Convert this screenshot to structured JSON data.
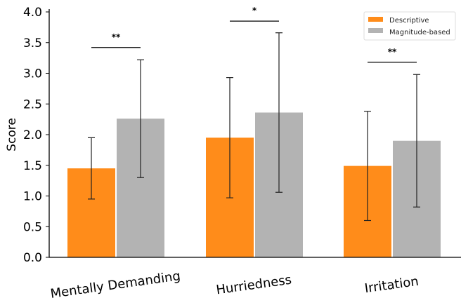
{
  "chart_data": {
    "type": "bar",
    "categories": [
      "Mentally Demanding",
      "Hurriedness",
      "Irritation"
    ],
    "ylabel": "Score",
    "xlabel": "",
    "ylim": [
      0,
      4.0
    ],
    "yticks": [
      "0.0",
      "0.5",
      "1.0",
      "1.5",
      "2.0",
      "2.5",
      "3.0",
      "3.5",
      "4.0"
    ],
    "grid": false,
    "legend_position": "top-right",
    "series": [
      {
        "name": "Descriptive",
        "color": "#ff8c1a",
        "values": [
          1.45,
          1.95,
          1.49
        ],
        "errors": [
          0.5,
          0.98,
          0.89
        ]
      },
      {
        "name": "Magnitude-based",
        "color": "#b3b3b3",
        "values": [
          2.26,
          2.36,
          1.9
        ],
        "errors": [
          0.96,
          1.3,
          1.08
        ]
      }
    ],
    "significance": [
      {
        "category": "Mentally Demanding",
        "label": "**",
        "y": 3.42
      },
      {
        "category": "Hurriedness",
        "label": "*",
        "y": 3.85
      },
      {
        "category": "Irritation",
        "label": "**",
        "y": 3.18
      }
    ]
  }
}
